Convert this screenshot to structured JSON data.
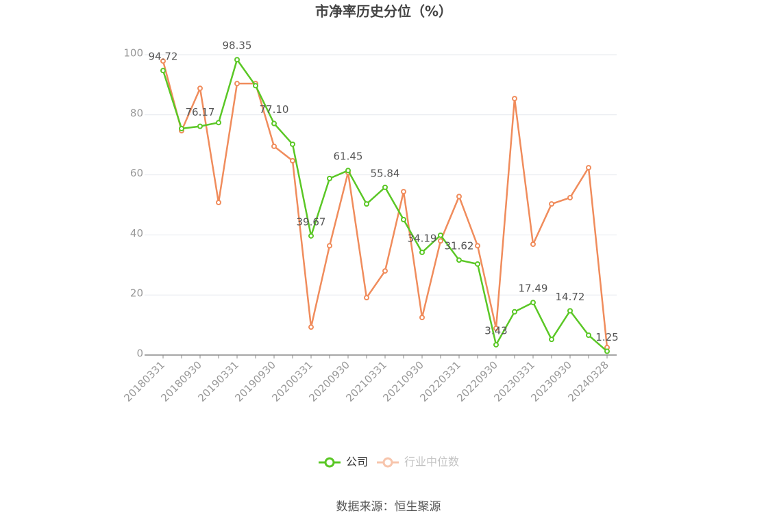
{
  "chart_data": {
    "type": "line",
    "title": "市净率历史分位（%）",
    "categories": [
      "20180331",
      null,
      "20180930",
      null,
      "20190331",
      null,
      "20190930",
      null,
      "20200331",
      null,
      "20200930",
      null,
      "20210331",
      null,
      "20210930",
      null,
      "20220331",
      null,
      "20220930",
      null,
      "20230331",
      null,
      "20230930",
      null,
      "20240328"
    ],
    "series": [
      {
        "name": "公司",
        "color": "#5ac725",
        "values": [
          94.72,
          75.4,
          76.17,
          77.4,
          98.35,
          89.7,
          77.1,
          70.2,
          39.67,
          58.8,
          61.45,
          50.3,
          55.84,
          45.1,
          34.19,
          39.9,
          31.62,
          30.3,
          3.43,
          14.4,
          17.49,
          5.2,
          14.72,
          6.6,
          1.25
        ],
        "value_labels": [
          "94.72",
          null,
          "76.17",
          null,
          "98.35",
          null,
          "77.10",
          null,
          "39.67",
          null,
          "61.45",
          null,
          "55.84",
          null,
          "34.19",
          null,
          "31.62",
          null,
          "3.43",
          null,
          "17.49",
          null,
          "14.72",
          null,
          "1.25"
        ]
      },
      {
        "name": "行业中位数",
        "color": "#f08c5c",
        "values": [
          97.9,
          74.7,
          88.8,
          50.8,
          90.4,
          90.4,
          69.5,
          64.7,
          9.3,
          36.4,
          60.8,
          19.1,
          28.0,
          54.4,
          12.5,
          38.0,
          52.8,
          36.4,
          8.9,
          85.4,
          36.9,
          50.3,
          52.4,
          62.4,
          2.5
        ]
      }
    ],
    "ylim": [
      0,
      100
    ],
    "yticks": [
      0,
      20,
      40,
      60,
      80,
      100
    ],
    "grid": true,
    "legend": "bottom",
    "source": "数据来源：恒生聚源"
  }
}
